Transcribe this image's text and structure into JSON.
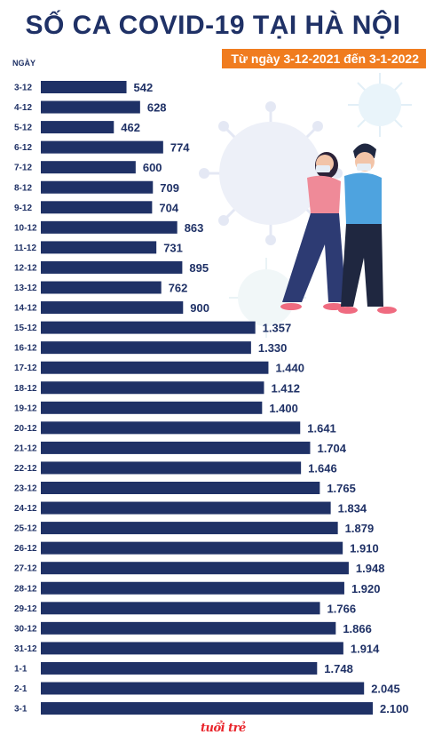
{
  "header": {
    "title": "SỐ CA COVID-19 TẠI HÀ NỘI",
    "subtitle": "Từ ngày 3-12-2021 đến 3-1-2022",
    "axis_head": "NGÀY"
  },
  "brand": {
    "logo_text": "tuổi trẻ"
  },
  "colors": {
    "bar": "#1f3166",
    "accent": "#f07c1f",
    "text": "#1f3166"
  },
  "chart_data": {
    "type": "bar",
    "orientation": "horizontal",
    "title": "SỐ CA COVID-19 TẠI HÀ NỘI",
    "subtitle": "Từ ngày 3-12-2021 đến 3-1-2022",
    "ylabel": "NGÀY",
    "xlabel": "",
    "xlim": [
      0,
      2100
    ],
    "grid": false,
    "categories": [
      "3-12",
      "4-12",
      "5-12",
      "6-12",
      "7-12",
      "8-12",
      "9-12",
      "10-12",
      "11-12",
      "12-12",
      "13-12",
      "14-12",
      "15-12",
      "16-12",
      "17-12",
      "18-12",
      "19-12",
      "20-12",
      "21-12",
      "22-12",
      "23-12",
      "24-12",
      "25-12",
      "26-12",
      "27-12",
      "28-12",
      "29-12",
      "30-12",
      "31-12",
      "1-1",
      "2-1",
      "3-1"
    ],
    "values": [
      542,
      628,
      462,
      774,
      600,
      709,
      704,
      863,
      731,
      895,
      762,
      900,
      1357,
      1330,
      1440,
      1412,
      1400,
      1641,
      1704,
      1646,
      1765,
      1834,
      1879,
      1910,
      1948,
      1920,
      1766,
      1866,
      1914,
      1748,
      2045,
      2100
    ],
    "value_labels": [
      "542",
      "628",
      "462",
      "774",
      "600",
      "709",
      "704",
      "863",
      "731",
      "895",
      "762",
      "900",
      "1.357",
      "1.330",
      "1.440",
      "1.412",
      "1.400",
      "1.641",
      "1.704",
      "1.646",
      "1.765",
      "1.834",
      "1.879",
      "1.910",
      "1.948",
      "1.920",
      "1.766",
      "1.866",
      "1.914",
      "1.748",
      "2.045",
      "2.100"
    ]
  }
}
